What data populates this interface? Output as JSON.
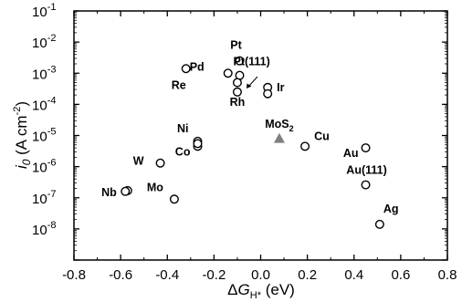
{
  "chart_data": {
    "type": "scatter",
    "xlabel": "ΔG_{H*} (eV)",
    "ylabel": "i_0 (A cm^{-2})",
    "xlim": [
      -0.8,
      0.8
    ],
    "ylim_log10": [
      -9,
      -1
    ],
    "log_y": true,
    "x_ticks": [
      -0.8,
      -0.6,
      -0.4,
      -0.2,
      0.0,
      0.2,
      0.4,
      0.6,
      0.8
    ],
    "x_tick_labels": [
      "-0.8",
      "-0.6",
      "-0.4",
      "-0.2",
      "0.0",
      "0.2",
      "0.4",
      "0.6",
      "0.8"
    ],
    "y_tick_exponents": [
      -8,
      -7,
      -6,
      -5,
      -4,
      -3,
      -2,
      -1
    ],
    "y_tick_base": "10",
    "grid": false,
    "marker_color": "#000000",
    "highlight_color": "#808080",
    "points": [
      {
        "label": "Pt",
        "x": -0.09,
        "y": 0.0025
      },
      {
        "label": "Pt(111)",
        "x": -0.09,
        "y": 0.00085
      },
      {
        "label": "Pd",
        "x": -0.14,
        "y": 0.001
      },
      {
        "label": "Rh",
        "x": -0.1,
        "y": 0.00025
      },
      {
        "label": "Re",
        "x": -0.32,
        "y": 0.0014
      },
      {
        "label": "Ir",
        "x": 0.03,
        "y": 0.00035
      },
      {
        "label": "Ni",
        "x": -0.27,
        "y": 6.5e-06
      },
      {
        "label": "Co",
        "x": -0.27,
        "y": 4.5e-06
      },
      {
        "label": "W",
        "x": -0.43,
        "y": 1.3e-06
      },
      {
        "label": "Nb",
        "x": -0.57,
        "y": 1.7e-07
      },
      {
        "label": "Mo",
        "x": -0.37,
        "y": 9e-08
      },
      {
        "label": "Cu",
        "x": 0.19,
        "y": 4.5e-06
      },
      {
        "label": "Au",
        "x": 0.45,
        "y": 4e-06
      },
      {
        "label": "Au(111)",
        "x": 0.45,
        "y": 2.6e-07
      },
      {
        "label": "Ag",
        "x": 0.51,
        "y": 1.4e-08
      },
      {
        "label": "MoS2",
        "x": 0.08,
        "y": 8e-06,
        "marker": "triangle",
        "color": "#808080"
      }
    ],
    "extra_points": [
      {
        "x": -0.58,
        "y": 1.6e-07
      },
      {
        "x": -0.1,
        "y": 0.0005
      },
      {
        "x": 0.03,
        "y": 0.00022
      },
      {
        "x": -0.27,
        "y": 5.5e-06
      }
    ]
  }
}
